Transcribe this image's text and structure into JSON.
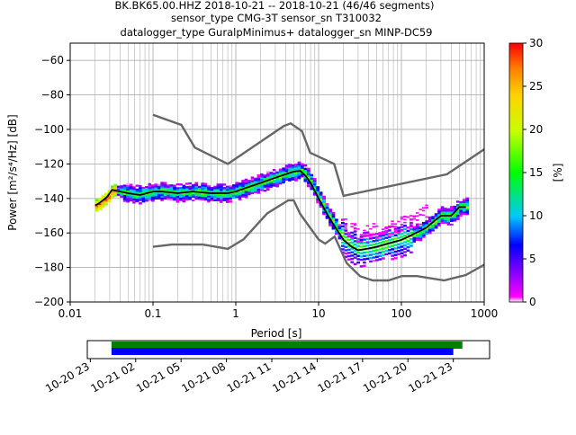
{
  "header": {
    "line1": "BK.BK65.00.HHZ   2018-10-21 -- 2018-10-21  (46/46 segments)",
    "line2": "sensor_type CMG-3T sensor_sn T310032",
    "line3": "datalogger_type GuralpMinimus+ datalogger_sn MINP-DC59"
  },
  "chart_data": [
    {
      "type": "heatmap",
      "title": "BK.BK65.00.HHZ   2018-10-21 -- 2018-10-21  (46/46 segments)",
      "xlabel": "Period [s]",
      "ylabel": "Power [m²/s⁴/Hz] [dB]",
      "x_scale": "log",
      "xlim": [
        0.01,
        1000
      ],
      "ylim": [
        -200,
        -50
      ],
      "xticks": [
        0.01,
        0.1,
        1,
        10,
        100,
        1000
      ],
      "xtick_labels": [
        "0.01",
        "0.1",
        "1",
        "10",
        "100",
        "1000"
      ],
      "yticks": [
        -60,
        -80,
        -100,
        -120,
        -140,
        -160,
        -180,
        -200
      ],
      "grid": true,
      "colorbar": {
        "label": "[%]",
        "range": [
          0,
          30
        ],
        "ticks": [
          0,
          5,
          10,
          15,
          20,
          25,
          30
        ],
        "colormap": "pqlx"
      },
      "noise_models": {
        "color": "#666666",
        "high": {
          "x": [
            0.1,
            0.22,
            0.32,
            0.8,
            3.8,
            4.6,
            6.3,
            7.9,
            15.4,
            20,
            354.8,
            1000
          ],
          "y": [
            -91.5,
            -97.4,
            -110.5,
            -120,
            -98,
            -96.5,
            -101,
            -113.5,
            -120,
            -138.5,
            -126,
            -111.5
          ]
        },
        "low": {
          "x": [
            0.1,
            0.17,
            0.4,
            0.8,
            1.24,
            2.4,
            4.3,
            5.0,
            6.0,
            10.0,
            12.0,
            15.6,
            21.9,
            31.6,
            45.0,
            70.0,
            101.0,
            154.0,
            328.0,
            600.0,
            1000.0
          ],
          "y": [
            -168,
            -166.7,
            -166.7,
            -169.2,
            -163.7,
            -148.6,
            -141.1,
            -141.1,
            -149,
            -163.8,
            -166.2,
            -162.1,
            -177.5,
            -185,
            -187.5,
            -187.5,
            -185,
            -185,
            -187.5,
            -184.4,
            -178.4
          ]
        }
      },
      "mode_curve": {
        "color": "#000000",
        "x": [
          0.02,
          0.022,
          0.025,
          0.028,
          0.032,
          0.04,
          0.05,
          0.07,
          0.1,
          0.13,
          0.2,
          0.3,
          0.5,
          0.8,
          1.0,
          1.3,
          2.0,
          3.0,
          4.0,
          5.0,
          6.0,
          7.0,
          8.0,
          10.0,
          13.0,
          16.0,
          20.0,
          25.0,
          30.0,
          40.0,
          50.0,
          70.0,
          100.0,
          150.0,
          200.0,
          250.0,
          300.0,
          400.0,
          500.0,
          600.0
        ],
        "y": [
          -144,
          -143,
          -141,
          -139,
          -135,
          -136,
          -137,
          -138,
          -136,
          -136,
          -137,
          -136,
          -137,
          -137,
          -136,
          -134,
          -131,
          -128,
          -126,
          -124.5,
          -124,
          -127,
          -131,
          -140,
          -150,
          -157,
          -164,
          -168,
          -170,
          -169,
          -168,
          -166,
          -164,
          -160,
          -157,
          -153,
          -150,
          -150,
          -145,
          -145
        ]
      },
      "density_note": "PPSD probability density shown as colored cells along the mode curve"
    },
    {
      "type": "bar",
      "name": "data-coverage",
      "xlim_label_start": "10-20 23",
      "xtick_labels": [
        "10-20 23",
        "10-21 02",
        "10-21 05",
        "10-21 08",
        "10-21 11",
        "10-21 14",
        "10-21 17",
        "10-21 20",
        "10-21 23"
      ],
      "bars": [
        {
          "color": "#008000",
          "start_hours": 1.6,
          "end_hours": 24.8
        },
        {
          "color": "#0000ff",
          "start_hours": 1.6,
          "end_hours": 24.2
        }
      ],
      "range_hours": [
        0,
        26.6
      ]
    }
  ]
}
